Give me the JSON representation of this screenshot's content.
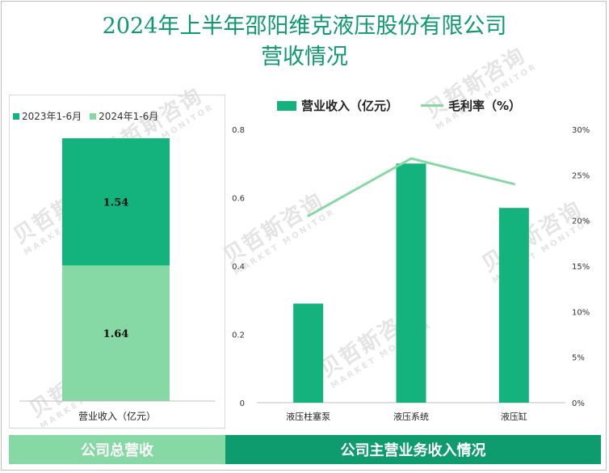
{
  "title_line1": "2024年上半年邵阳维克液压股份有限公司",
  "title_line2": "营收情况",
  "watermark_cn": "贝哲斯咨询",
  "watermark_en": "MARKET MONITOR",
  "colors": {
    "title": "#0f9a6e",
    "dark_green": "#14b27d",
    "light_green": "#86d9a4",
    "footer_dark": "#0e9b6d",
    "footer_light": "#86d9a4"
  },
  "footer_left": "公司总营收",
  "footer_right": "公司主营业务收入情况",
  "chart_data": [
    {
      "type": "bar",
      "stacked": true,
      "categories": [
        "营业收入（亿元）"
      ],
      "series": [
        {
          "name": "2023年1-6月",
          "values": [
            1.54
          ],
          "color": "#14b27d"
        },
        {
          "name": "2024年1-6月",
          "values": [
            1.64
          ],
          "color": "#86d9a4"
        }
      ],
      "legend_position": "top-left",
      "grid": false
    },
    {
      "type": "bar",
      "categories": [
        "液压柱塞泵",
        "液压系统",
        "液压缸"
      ],
      "series": [
        {
          "name": "营业收入（亿元）",
          "type": "bar",
          "values": [
            0.29,
            0.7,
            0.57
          ],
          "axis": "left",
          "color": "#14b27d"
        },
        {
          "name": "毛利率（%）",
          "type": "line",
          "values": [
            20.5,
            26.8,
            24.0
          ],
          "axis": "right",
          "color": "#86d9a4"
        }
      ],
      "y_left": {
        "min": 0,
        "max": 0.8,
        "ticks": [
          "0",
          "0.2",
          "0.4",
          "0.6",
          "0.8"
        ]
      },
      "y_right": {
        "min": 0,
        "max": 30,
        "ticks": [
          "0%",
          "5%",
          "10%",
          "15%",
          "20%",
          "25%",
          "30%"
        ]
      },
      "legend_position": "top",
      "grid": false
    }
  ]
}
